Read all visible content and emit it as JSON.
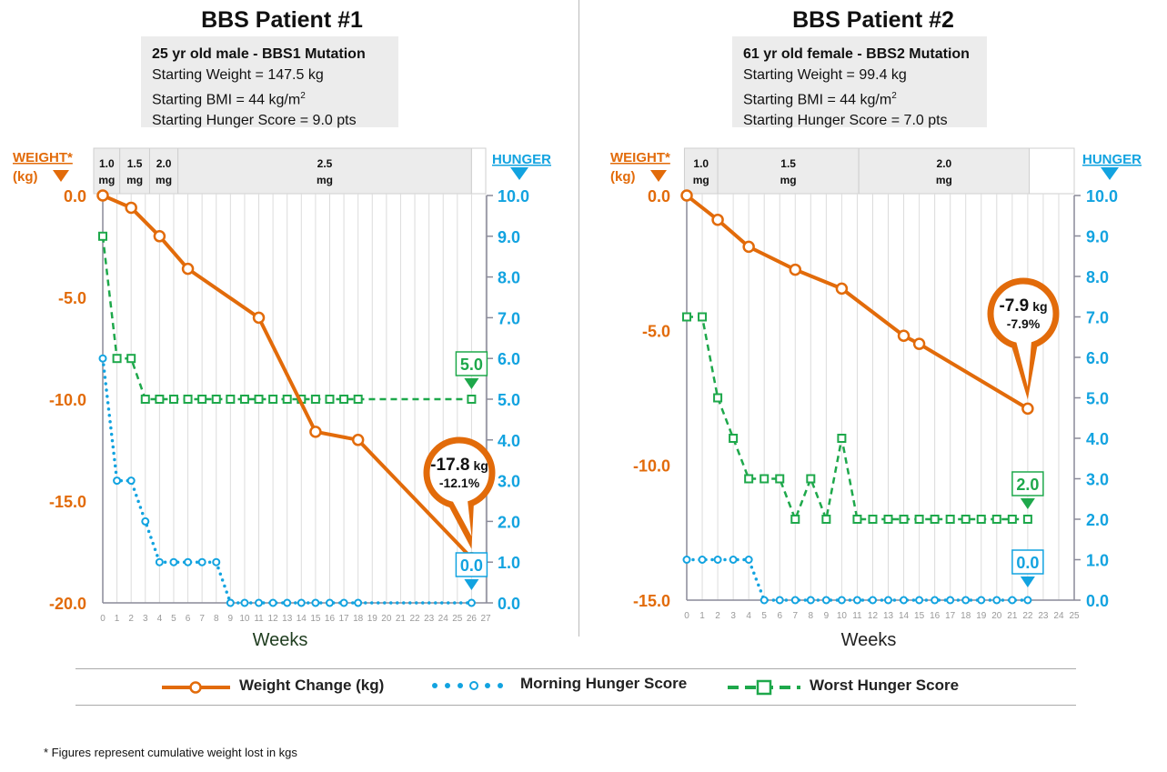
{
  "panels": [
    {
      "title": "BBS Patient #1",
      "info_heading": "25 yr old male - BBS1 Mutation",
      "starting_weight": "Starting Weight = 147.5 kg",
      "starting_bmi": "Starting BMI = 44 kg/m",
      "bmi_sup": "2",
      "starting_hunger": "Starting Hunger Score = 9.0 pts"
    },
    {
      "title": "BBS Patient #2",
      "info_heading": "61 yr old female - BBS2 Mutation",
      "starting_weight": "Starting Weight = 99.4 kg",
      "starting_bmi": "Starting BMI = 44 kg/m",
      "bmi_sup": "2",
      "starting_hunger": "Starting Hunger Score = 7.0 pts"
    }
  ],
  "legend": {
    "weight": "Weight Change (kg)",
    "morning": "Morning Hunger Score",
    "worst": "Worst Hunger Score"
  },
  "footnote": "* Figures represent cumulative weight lost in kgs",
  "colors": {
    "weight": "#E26B0A",
    "morning": "#12A3E0",
    "worst": "#1EA84B",
    "axis": "#8a8a99",
    "grid": "#dcdcdc"
  },
  "chart_data": [
    {
      "type": "line",
      "title": "BBS Patient #1",
      "xlabel": "Weeks",
      "ylabel_left": "WEIGHT*",
      "ylabel_left_unit": "(kg)",
      "ylabel_right": "HUNGER",
      "xlim": [
        0,
        27
      ],
      "x_ticks": [
        0,
        1,
        2,
        3,
        4,
        5,
        6,
        7,
        8,
        9,
        10,
        11,
        12,
        13,
        14,
        15,
        16,
        17,
        18,
        19,
        20,
        21,
        22,
        23,
        24,
        25,
        26,
        27
      ],
      "ylim_left": [
        -20,
        0
      ],
      "left_ticks": [
        "0.0",
        "-5.0",
        "-10.0",
        "-15.0",
        "-20.0"
      ],
      "left_tick_values": [
        0,
        -5,
        -10,
        -15,
        -20
      ],
      "ylim_right": [
        0,
        10
      ],
      "right_ticks": [
        "10.0",
        "9.0",
        "8.0",
        "7.0",
        "6.0",
        "5.0",
        "4.0",
        "3.0",
        "2.0",
        "1.0",
        "0.0"
      ],
      "right_tick_values": [
        10,
        9,
        8,
        7,
        6,
        5,
        4,
        3,
        2,
        1,
        0
      ],
      "doses": [
        {
          "label1": "1.0",
          "label2": "mg",
          "from": -0.7,
          "to": 1.2
        },
        {
          "label1": "1.5",
          "label2": "mg",
          "from": 1.2,
          "to": 3.3
        },
        {
          "label1": "2.0",
          "label2": "mg",
          "from": 3.3,
          "to": 5.3
        },
        {
          "label1": "2.5",
          "label2": "mg",
          "from": 5.3,
          "to": 26.0
        },
        {
          "label1": "",
          "label2": "",
          "from": 26.0,
          "to": 27.0
        }
      ],
      "series": [
        {
          "name": "Weight Change (kg)",
          "axis": "left",
          "x": [
            0,
            2,
            4,
            6,
            11,
            15,
            18,
            26
          ],
          "y": [
            0,
            -0.6,
            -2.0,
            -3.6,
            -6.0,
            -11.6,
            -12.0,
            -17.8
          ]
        },
        {
          "name": "Morning Hunger Score",
          "axis": "right",
          "x": [
            0,
            1,
            2,
            3,
            4,
            5,
            6,
            7,
            8,
            9,
            10,
            11,
            12,
            13,
            14,
            15,
            16,
            17,
            18,
            26
          ],
          "y": [
            6,
            3,
            3,
            2,
            1,
            1,
            1,
            1,
            1,
            0,
            0,
            0,
            0,
            0,
            0,
            0,
            0,
            0,
            0,
            0
          ]
        },
        {
          "name": "Worst Hunger Score",
          "axis": "right",
          "x": [
            0,
            1,
            2,
            3,
            4,
            5,
            6,
            7,
            8,
            9,
            10,
            11,
            12,
            13,
            14,
            15,
            16,
            17,
            18,
            26
          ],
          "y": [
            9,
            6,
            6,
            5,
            5,
            5,
            5,
            5,
            5,
            5,
            5,
            5,
            5,
            5,
            5,
            5,
            5,
            5,
            5,
            5
          ]
        }
      ],
      "annotations": {
        "weight_kg": "-17.8",
        "weight_unit": "kg",
        "weight_pct": "-12.1%",
        "worst_final": "5.0",
        "morning_final": "0.0"
      }
    },
    {
      "type": "line",
      "title": "BBS Patient #2",
      "xlabel": "Weeks",
      "ylabel_left": "WEIGHT*",
      "ylabel_left_unit": "(kg)",
      "ylabel_right": "HUNGER",
      "xlim": [
        0,
        25
      ],
      "x_ticks": [
        0,
        1,
        2,
        3,
        4,
        5,
        6,
        7,
        8,
        9,
        10,
        11,
        12,
        13,
        14,
        15,
        16,
        17,
        18,
        19,
        20,
        21,
        22,
        23,
        24,
        25
      ],
      "ylim_left": [
        -15,
        0
      ],
      "left_ticks": [
        "0.0",
        "-5.0",
        "-10.0",
        "-15.0"
      ],
      "left_tick_values": [
        0,
        -5,
        -10,
        -15
      ],
      "ylim_right": [
        0,
        10
      ],
      "right_ticks": [
        "10.0",
        "9.0",
        "8.0",
        "7.0",
        "6.0",
        "5.0",
        "4.0",
        "3.0",
        "2.0",
        "1.0",
        "0.0"
      ],
      "right_tick_values": [
        10,
        9,
        8,
        7,
        6,
        5,
        4,
        3,
        2,
        1,
        0
      ],
      "doses": [
        {
          "label1": "1.0",
          "label2": "mg",
          "from": -0.15,
          "to": 2.0
        },
        {
          "label1": "1.5",
          "label2": "mg",
          "from": 2.0,
          "to": 11.1
        },
        {
          "label1": "2.0",
          "label2": "mg",
          "from": 11.1,
          "to": 22.1
        },
        {
          "label1": "",
          "label2": "",
          "from": 22.1,
          "to": 25.0
        }
      ],
      "series": [
        {
          "name": "Weight Change (kg)",
          "axis": "left",
          "x": [
            0,
            2,
            4,
            7,
            10,
            14,
            15,
            22
          ],
          "y": [
            0,
            -0.9,
            -1.9,
            -2.75,
            -3.45,
            -5.2,
            -5.5,
            -7.9
          ]
        },
        {
          "name": "Morning Hunger Score",
          "axis": "right",
          "x": [
            0,
            1,
            2,
            3,
            4,
            5,
            6,
            7,
            8,
            9,
            10,
            11,
            12,
            13,
            14,
            15,
            16,
            17,
            18,
            19,
            20,
            21,
            22
          ],
          "y": [
            1,
            1,
            1,
            1,
            1,
            0,
            0,
            0,
            0,
            0,
            0,
            0,
            0,
            0,
            0,
            0,
            0,
            0,
            0,
            0,
            0,
            0,
            0
          ]
        },
        {
          "name": "Worst Hunger Score",
          "axis": "right",
          "x": [
            0,
            1,
            2,
            3,
            4,
            5,
            6,
            7,
            8,
            9,
            10,
            11,
            12,
            13,
            14,
            15,
            16,
            17,
            18,
            19,
            20,
            21,
            22
          ],
          "y": [
            7,
            7,
            5,
            4,
            3,
            3,
            3,
            2,
            3,
            2,
            4,
            2,
            2,
            2,
            2,
            2,
            2,
            2,
            2,
            2,
            2,
            2,
            2
          ]
        }
      ],
      "annotations": {
        "weight_kg": "-7.9",
        "weight_unit": "kg",
        "weight_pct": "-7.9%",
        "worst_final": "2.0",
        "morning_final": "0.0"
      }
    }
  ]
}
